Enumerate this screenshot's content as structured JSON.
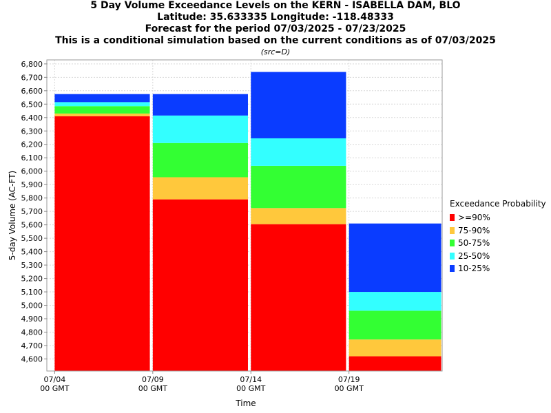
{
  "title_lines": [
    "5 Day Volume Exceedance Levels on the KERN - ISABELLA DAM, BLO",
    "Latitude: 35.633335 Longitude: -118.48333",
    "Forecast for the period 07/03/2025 - 07/23/2025",
    "This is a conditional simulation based on the current conditions as of 07/03/2025"
  ],
  "source_note": "(src=D)",
  "chart_data": {
    "type": "bar",
    "stacked": true,
    "xlabel": "Time",
    "ylabel": "5-day Volume (AC-FT)",
    "ylim": [
      4510,
      6830
    ],
    "yticks": [
      4600,
      4700,
      4800,
      4900,
      5000,
      5100,
      5200,
      5300,
      5400,
      5500,
      5600,
      5700,
      5800,
      5900,
      6000,
      6100,
      6200,
      6300,
      6400,
      6500,
      6600,
      6700,
      6800
    ],
    "ytick_labels": [
      "4,600",
      "4,700",
      "4,800",
      "4,900",
      "5,000",
      "5,100",
      "5,200",
      "5,300",
      "5,400",
      "5,500",
      "5,600",
      "5,700",
      "5,800",
      "5,900",
      "6,000",
      "6,100",
      "6,200",
      "6,300",
      "6,400",
      "6,500",
      "6,600",
      "6,700",
      "6,800"
    ],
    "xticks": [
      {
        "line1": "07/04",
        "line2": "00 GMT",
        "day": 0
      },
      {
        "line1": "07/09",
        "line2": "00 GMT",
        "day": 5
      },
      {
        "line1": "07/14",
        "line2": "00 GMT",
        "day": 10
      },
      {
        "line1": "07/19",
        "line2": "00 GMT",
        "day": 15
      }
    ],
    "x_range_days": [
      -0.4,
      19.75
    ],
    "legend_title": "Exceedance Probability",
    "legend_position": "right",
    "grid": true,
    "bars": [
      {
        "start_day": 0,
        "end_day": 4.85,
        "levels": [
          6410,
          6430,
          6485,
          6515,
          6575
        ]
      },
      {
        "start_day": 5,
        "end_day": 9.85,
        "levels": [
          5790,
          5955,
          6210,
          6415,
          6575
        ]
      },
      {
        "start_day": 10,
        "end_day": 14.85,
        "levels": [
          5605,
          5725,
          6040,
          6245,
          6740
        ]
      },
      {
        "start_day": 15,
        "end_day": 19.7,
        "levels": [
          4620,
          4745,
          4960,
          5100,
          5610
        ]
      }
    ],
    "series": [
      {
        "name": ">=90%",
        "color": "#ff0000"
      },
      {
        "name": "75-90%",
        "color": "#ffc83c"
      },
      {
        "name": "50-75%",
        "color": "#33ff33"
      },
      {
        "name": "25-50%",
        "color": "#33ffff"
      },
      {
        "name": "10-25%",
        "color": "#0a3cff"
      }
    ]
  }
}
